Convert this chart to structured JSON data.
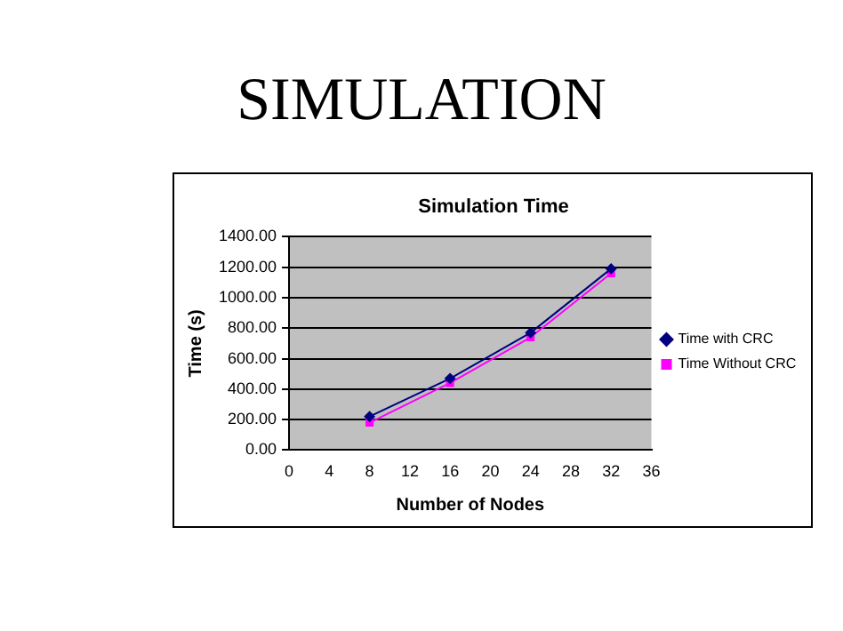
{
  "chart_data": {
    "type": "line",
    "title": "SIMULATION",
    "subtitle": "Simulation Time",
    "xlabel": "Number of Nodes",
    "ylabel": "Time (s)",
    "x": [
      8,
      16,
      24,
      32
    ],
    "series": [
      {
        "name": "Time with CRC",
        "color": "#000080",
        "values": [
          220,
          470,
          770,
          1190
        ],
        "marker": "diamond"
      },
      {
        "name": "Time Without CRC",
        "color": "#ff00ff",
        "values": [
          180,
          440,
          740,
          1160
        ],
        "marker": "square"
      }
    ],
    "xlim": [
      0,
      36
    ],
    "xticks": [
      0,
      4,
      8,
      12,
      16,
      20,
      24,
      28,
      32,
      36
    ],
    "ylim": [
      0,
      1400
    ],
    "yticks": [
      {
        "value": 0,
        "label": "0.00"
      },
      {
        "value": 200,
        "label": "200.00"
      },
      {
        "value": 400,
        "label": "400.00"
      },
      {
        "value": 600,
        "label": "600.00"
      },
      {
        "value": 800,
        "label": "800.00"
      },
      {
        "value": 1000,
        "label": "1000.00"
      },
      {
        "value": 1200,
        "label": "1200.00"
      },
      {
        "value": 1400,
        "label": "1400.00"
      }
    ],
    "grid": "y",
    "legend": "right",
    "line_style": "solid"
  }
}
